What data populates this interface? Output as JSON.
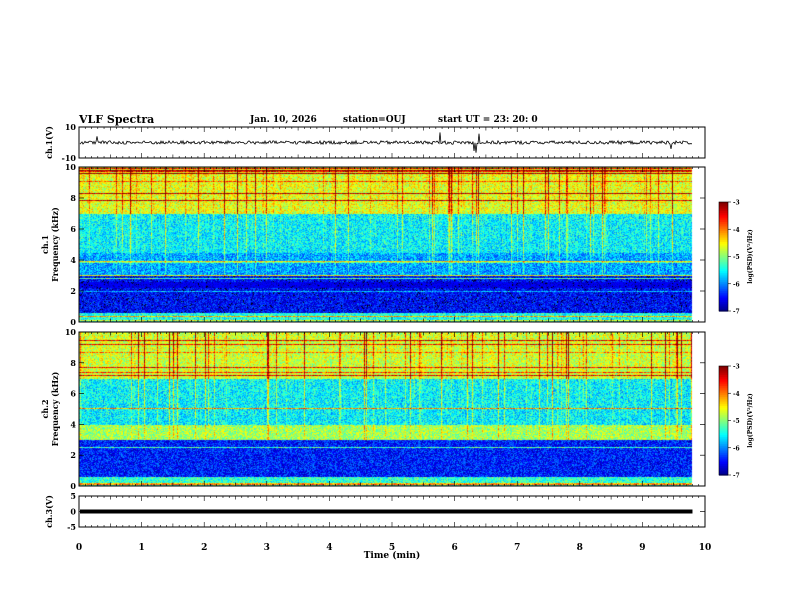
{
  "header": {
    "title": "VLF Spectra",
    "date": "Jan. 10, 2026",
    "station": "station=OUJ",
    "start_ut": "start UT =  23: 20: 0"
  },
  "chart_data": {
    "type": "heatmap",
    "x_axis": {
      "label": "Time (min)",
      "range": [
        0,
        10
      ],
      "ticks": [
        "0",
        "1",
        "2",
        "3",
        "4",
        "5",
        "6",
        "7",
        "8",
        "9",
        "10"
      ]
    },
    "panels": [
      {
        "id": "ch1-waveform",
        "type": "line",
        "ylabel": "ch.1(V)",
        "ylim": [
          -10,
          10
        ],
        "tick_labels": [
          "10",
          "-10"
        ],
        "mean_value": 0,
        "data_end_min": 9.8
      },
      {
        "id": "ch1-spectrogram",
        "type": "heatmap",
        "ylabel_line1": "ch.1",
        "ylabel_line2": "Frequency (kHz)",
        "ylim": [
          0,
          10
        ],
        "tick_labels": [
          "10",
          "8",
          "6",
          "4",
          "2",
          "0"
        ],
        "data_end_min": 9.8,
        "colorbar": {
          "label": "log(PSD)(V²/Hz)",
          "range": [
            -7,
            -3
          ],
          "tick_labels": [
            "-3",
            "-4",
            "-5",
            "-6",
            "-7"
          ]
        }
      },
      {
        "id": "ch2-spectrogram",
        "type": "heatmap",
        "ylabel_line1": "ch.2",
        "ylabel_line2": "Frequency (kHz)",
        "ylim": [
          0,
          10
        ],
        "tick_labels": [
          "10",
          "8",
          "6",
          "4",
          "2",
          "0"
        ],
        "data_end_min": 9.8,
        "colorbar": {
          "label": "log(PSD)(V²/Hz)",
          "range": [
            -7,
            -3
          ],
          "tick_labels": [
            "-3",
            "-4",
            "-5",
            "-6",
            "-7"
          ]
        }
      },
      {
        "id": "ch3-waveform",
        "type": "line",
        "ylabel": "ch.3(V)",
        "ylim": [
          -5,
          5
        ],
        "tick_labels": [
          "5",
          "0",
          "-5"
        ],
        "mean_value": 0,
        "data_end_min": 9.8
      }
    ]
  }
}
